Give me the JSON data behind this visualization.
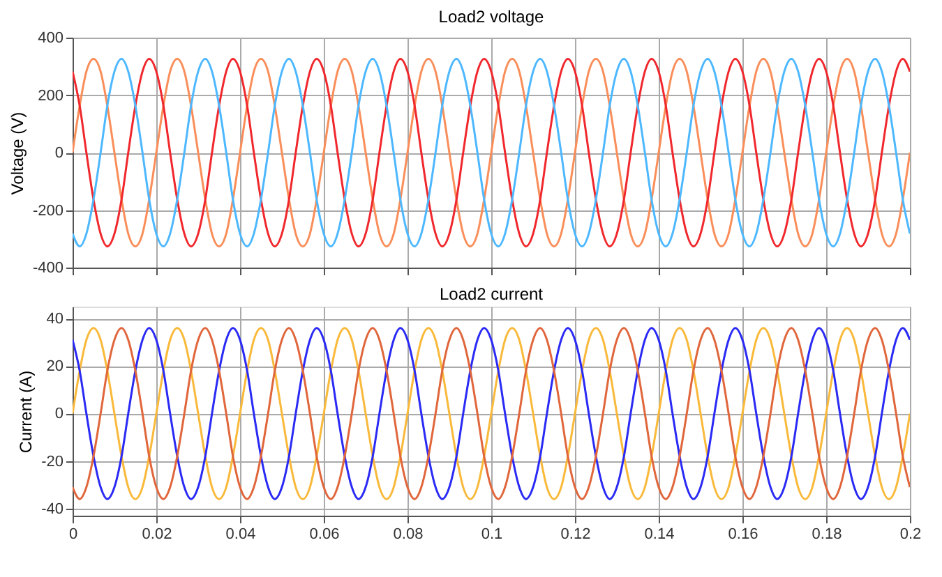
{
  "chart_data": [
    {
      "type": "line",
      "title": "Load2 voltage",
      "ylabel": "Voltage (V)",
      "xlim": [
        0,
        0.2
      ],
      "xticks": [
        0,
        0.02,
        0.04,
        0.06,
        0.08,
        0.1,
        0.12,
        0.14,
        0.16,
        0.18,
        0.2
      ],
      "ylim": [
        -400,
        400
      ],
      "yticks": [
        -400,
        -200,
        0,
        200,
        400
      ],
      "grid": true,
      "tick_labels": "y",
      "x": [
        0,
        0.0017,
        0.0033,
        0.005,
        0.0067,
        0.0083,
        0.01,
        0.0117,
        0.0133,
        0.015,
        0.0167,
        0.0183,
        0.02,
        0.0217,
        0.0233,
        0.025,
        0.0267,
        0.0283,
        0.03,
        0.0317,
        0.0333,
        0.035,
        0.0367,
        0.0383,
        0.04,
        0.0417,
        0.0433,
        0.045,
        0.0467,
        0.0483,
        0.05,
        0.0517,
        0.0533,
        0.055,
        0.0567,
        0.0583,
        0.06,
        0.0617,
        0.0633,
        0.065,
        0.0667,
        0.0683,
        0.07,
        0.0717,
        0.0733,
        0.075,
        0.0767,
        0.0783,
        0.08,
        0.0817,
        0.0833,
        0.085,
        0.0867,
        0.0883,
        0.09,
        0.0917,
        0.0933,
        0.095,
        0.0967,
        0.0983,
        0.1,
        0.1017,
        0.1033,
        0.105,
        0.1067,
        0.1083,
        0.11,
        0.1117,
        0.1133,
        0.115,
        0.1167,
        0.1183,
        0.12,
        0.1217,
        0.1233,
        0.125,
        0.1267,
        0.1283,
        0.13,
        0.1317,
        0.1333,
        0.135,
        0.1367,
        0.1383,
        0.14,
        0.1417,
        0.1433,
        0.145,
        0.1467,
        0.1483,
        0.15,
        0.1517,
        0.1533,
        0.155,
        0.1567,
        0.1583,
        0.16,
        0.1617,
        0.1633,
        0.165,
        0.1667,
        0.1683,
        0.17,
        0.1717,
        0.1733,
        0.175,
        0.1767,
        0.1783,
        0.18,
        0.1817,
        0.1833,
        0.185,
        0.1867,
        0.1883,
        0.19,
        0.1917,
        0.1933,
        0.195,
        0.1967,
        0.1983,
        0.2
      ],
      "series": [
        {
          "color": "#f98e5a",
          "values": [
            0,
            163,
            282,
            326,
            282,
            163,
            0,
            -163,
            -282,
            -326,
            -282,
            -163,
            0,
            163,
            282,
            326,
            282,
            163,
            0,
            -163,
            -282,
            -326,
            -282,
            -163,
            0,
            163,
            282,
            326,
            282,
            163,
            0,
            -163,
            -282,
            -326,
            -282,
            -163,
            0,
            163,
            282,
            326,
            282,
            163,
            0,
            -163,
            -282,
            -326,
            -282,
            -163,
            0,
            163,
            282,
            326,
            282,
            163,
            0,
            -163,
            -282,
            -326,
            -282,
            -163,
            0,
            163,
            282,
            326,
            282,
            163,
            0,
            -163,
            -282,
            -326,
            -282,
            -163,
            0,
            163,
            282,
            326,
            282,
            163,
            0,
            -163,
            -282,
            -326,
            -282,
            -163,
            0,
            163,
            282,
            326,
            282,
            163,
            0,
            -163,
            -282,
            -326,
            -282,
            -163,
            0,
            163,
            282,
            326,
            282,
            163,
            0,
            -163,
            -282,
            -326,
            -282,
            -163,
            0,
            163,
            282,
            326,
            282,
            163,
            0,
            -163,
            -282,
            -326,
            -282,
            -163,
            0
          ]
        },
        {
          "color": "#f0282d",
          "values": [
            282,
            163,
            0,
            -163,
            -282,
            -326,
            -282,
            -163,
            0,
            163,
            282,
            326,
            282,
            163,
            0,
            -163,
            -282,
            -326,
            -282,
            -163,
            0,
            163,
            282,
            326,
            282,
            163,
            0,
            -163,
            -282,
            -326,
            -282,
            -163,
            0,
            163,
            282,
            326,
            282,
            163,
            0,
            -163,
            -282,
            -326,
            -282,
            -163,
            0,
            163,
            282,
            326,
            282,
            163,
            0,
            -163,
            -282,
            -326,
            -282,
            -163,
            0,
            163,
            282,
            326,
            282,
            163,
            0,
            -163,
            -282,
            -326,
            -282,
            -163,
            0,
            163,
            282,
            326,
            282,
            163,
            0,
            -163,
            -282,
            -326,
            -282,
            -163,
            0,
            163,
            282,
            326,
            282,
            163,
            0,
            -163,
            -282,
            -326,
            -282,
            -163,
            0,
            163,
            282,
            326,
            282,
            163,
            0,
            -163,
            -282,
            -326,
            -282,
            -163,
            0,
            163,
            282,
            326,
            282,
            163,
            0,
            -163,
            -282,
            -326,
            -282,
            -163,
            0,
            163,
            282,
            326,
            282
          ]
        },
        {
          "color": "#4db8ff",
          "values": [
            -282,
            -326,
            -282,
            -163,
            0,
            163,
            282,
            326,
            282,
            163,
            0,
            -163,
            -282,
            -326,
            -282,
            -163,
            0,
            163,
            282,
            326,
            282,
            163,
            0,
            -163,
            -282,
            -326,
            -282,
            -163,
            0,
            163,
            282,
            326,
            282,
            163,
            0,
            -163,
            -282,
            -326,
            -282,
            -163,
            0,
            163,
            282,
            326,
            282,
            163,
            0,
            -163,
            -282,
            -326,
            -282,
            -163,
            0,
            163,
            282,
            326,
            282,
            163,
            0,
            -163,
            -282,
            -326,
            -282,
            -163,
            0,
            163,
            282,
            326,
            282,
            163,
            0,
            -163,
            -282,
            -326,
            -282,
            -163,
            0,
            163,
            282,
            326,
            282,
            163,
            0,
            -163,
            -282,
            -326,
            -282,
            -163,
            0,
            163,
            282,
            326,
            282,
            163,
            0,
            -163,
            -282,
            -326,
            -282,
            -163,
            0,
            163,
            282,
            326,
            282,
            163,
            0,
            -163,
            -282,
            -326,
            -282,
            -163,
            0,
            163,
            282,
            326,
            282,
            163,
            0,
            -163,
            -282
          ]
        }
      ]
    },
    {
      "type": "line",
      "title": "Load2 current",
      "ylabel": "Current (A)",
      "xlim": [
        0,
        0.2
      ],
      "xticks": [
        0,
        0.02,
        0.04,
        0.06,
        0.08,
        0.1,
        0.12,
        0.14,
        0.16,
        0.18,
        0.2
      ],
      "ylim": [
        -43,
        45
      ],
      "yticks": [
        -40,
        -20,
        0,
        20,
        40
      ],
      "grid": true,
      "x": [
        0,
        0.0017,
        0.0033,
        0.005,
        0.0067,
        0.0083,
        0.01,
        0.0117,
        0.0133,
        0.015,
        0.0167,
        0.0183,
        0.02,
        0.0217,
        0.0233,
        0.025,
        0.0267,
        0.0283,
        0.03,
        0.0317,
        0.0333,
        0.035,
        0.0367,
        0.0383,
        0.04,
        0.0417,
        0.0433,
        0.045,
        0.0467,
        0.0483,
        0.05,
        0.0517,
        0.0533,
        0.055,
        0.0567,
        0.0583,
        0.06,
        0.0617,
        0.0633,
        0.065,
        0.0667,
        0.0683,
        0.07,
        0.0717,
        0.0733,
        0.075,
        0.0767,
        0.0783,
        0.08,
        0.0817,
        0.0833,
        0.085,
        0.0867,
        0.0883,
        0.09,
        0.0917,
        0.0933,
        0.095,
        0.0967,
        0.0983,
        0.1,
        0.1017,
        0.1033,
        0.105,
        0.1067,
        0.1083,
        0.11,
        0.1117,
        0.1133,
        0.115,
        0.1167,
        0.1183,
        0.12,
        0.1217,
        0.1233,
        0.125,
        0.1267,
        0.1283,
        0.13,
        0.1317,
        0.1333,
        0.135,
        0.1367,
        0.1383,
        0.14,
        0.1417,
        0.1433,
        0.145,
        0.1467,
        0.1483,
        0.15,
        0.1517,
        0.1533,
        0.155,
        0.1567,
        0.1583,
        0.16,
        0.1617,
        0.1633,
        0.165,
        0.1667,
        0.1683,
        0.17,
        0.1717,
        0.1733,
        0.175,
        0.1767,
        0.1783,
        0.18,
        0.1817,
        0.1833,
        0.185,
        0.1867,
        0.1883,
        0.19,
        0.1917,
        0.1933,
        0.195,
        0.1967,
        0.1983,
        0.2
      ],
      "series": [
        {
          "color": "#f9b93a",
          "values": [
            0,
            18,
            31,
            36,
            31,
            18,
            0,
            -18,
            -31,
            -36,
            -31,
            -18,
            0,
            18,
            31,
            36,
            31,
            18,
            0,
            -18,
            -31,
            -36,
            -31,
            -18,
            0,
            18,
            31,
            36,
            31,
            18,
            0,
            -18,
            -31,
            -36,
            -31,
            -18,
            0,
            18,
            31,
            36,
            31,
            18,
            0,
            -18,
            -31,
            -36,
            -31,
            -18,
            0,
            18,
            31,
            36,
            31,
            18,
            0,
            -18,
            -31,
            -36,
            -31,
            -18,
            0,
            18,
            31,
            36,
            31,
            18,
            0,
            -18,
            -31,
            -36,
            -31,
            -18,
            0,
            18,
            31,
            36,
            31,
            18,
            0,
            -18,
            -31,
            -36,
            -31,
            -18,
            0,
            18,
            31,
            36,
            31,
            18,
            0,
            -18,
            -31,
            -36,
            -31,
            -18,
            0,
            18,
            31,
            36,
            31,
            18,
            0,
            -18,
            -31,
            -36,
            -31,
            -18,
            0,
            18,
            31,
            36,
            31,
            18,
            0,
            -18,
            -31,
            -36,
            -31,
            -18,
            0
          ]
        },
        {
          "color": "#2a2af5",
          "values": [
            31,
            18,
            0,
            -18,
            -31,
            -36,
            -31,
            -18,
            0,
            18,
            31,
            36,
            31,
            18,
            0,
            -18,
            -31,
            -36,
            -31,
            -18,
            0,
            18,
            31,
            36,
            31,
            18,
            0,
            -18,
            -31,
            -36,
            -31,
            -18,
            0,
            18,
            31,
            36,
            31,
            18,
            0,
            -18,
            -31,
            -36,
            -31,
            -18,
            0,
            18,
            31,
            36,
            31,
            18,
            0,
            -18,
            -31,
            -36,
            -31,
            -18,
            0,
            18,
            31,
            36,
            31,
            18,
            0,
            -18,
            -31,
            -36,
            -31,
            -18,
            0,
            18,
            31,
            36,
            31,
            18,
            0,
            -18,
            -31,
            -36,
            -31,
            -18,
            0,
            18,
            31,
            36,
            31,
            18,
            0,
            -18,
            -31,
            -36,
            -31,
            -18,
            0,
            18,
            31,
            36,
            31,
            18,
            0,
            -18,
            -31,
            -36,
            -31,
            -18,
            0,
            18,
            31,
            36,
            31,
            18,
            0,
            -18,
            -31,
            -36,
            -31,
            -18,
            0,
            18,
            31,
            36,
            31
          ]
        },
        {
          "color": "#e0663c",
          "values": [
            -31,
            -36,
            -31,
            -18,
            0,
            18,
            31,
            36,
            31,
            18,
            0,
            -18,
            -31,
            -36,
            -31,
            -18,
            0,
            18,
            31,
            36,
            31,
            18,
            0,
            -18,
            -31,
            -36,
            -31,
            -18,
            0,
            18,
            31,
            36,
            31,
            18,
            0,
            -18,
            -31,
            -36,
            -31,
            -18,
            0,
            18,
            31,
            36,
            31,
            18,
            0,
            -18,
            -31,
            -36,
            -31,
            -18,
            0,
            18,
            31,
            36,
            31,
            18,
            0,
            -18,
            -31,
            -36,
            -31,
            -18,
            0,
            18,
            31,
            36,
            31,
            18,
            0,
            -18,
            -31,
            -36,
            -31,
            -18,
            0,
            18,
            31,
            36,
            31,
            18,
            0,
            -18,
            -31,
            -36,
            -31,
            -18,
            0,
            18,
            31,
            36,
            31,
            18,
            0,
            -18,
            -31,
            -36,
            -31,
            -18,
            0,
            18,
            31,
            36,
            31,
            18,
            0,
            -18,
            -31,
            -36,
            -31,
            -18,
            0,
            18,
            31,
            36,
            31,
            18,
            0,
            -18,
            -31
          ]
        }
      ]
    }
  ]
}
